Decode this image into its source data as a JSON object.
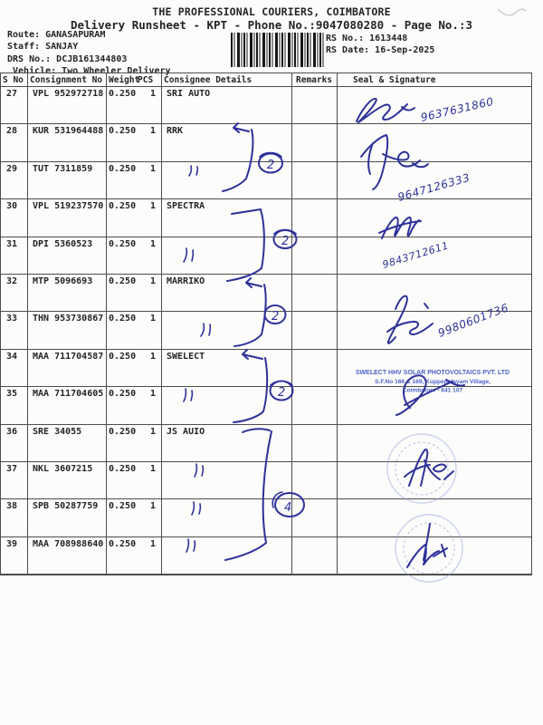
{
  "header": {
    "title": "THE PROFESSIONAL COURIERS, COIMBATORE",
    "subtitle": "Delivery Runsheet - KPT - Phone No.:9047080280 - Page No.:3",
    "route_label": "Route:",
    "route_value": "GANASAPURAM",
    "staff_label": "Staff:",
    "staff_value": "SANJAY",
    "drs_label": "DRS No.:",
    "drs_value": "DCJB161344803",
    "vehicle_label": "Vehicle:",
    "vehicle_value": "Two Wheeler Delivery",
    "rs_no_label": "RS No.:",
    "rs_no_value": "1613448",
    "rs_date_label": "RS Date:",
    "rs_date_value": "16-Sep-2025"
  },
  "table": {
    "headers": {
      "sno": "S No",
      "consignment": "Consignment No",
      "weight": "Weight",
      "pcs": "PCS",
      "consignee": "Consignee Details",
      "remarks": "Remarks",
      "seal": "Seal & Signature"
    },
    "rows": [
      {
        "sno": "27",
        "consignment": "VPL 952972718",
        "weight": "0.250",
        "pcs": "1",
        "consignee": "SRI AUTO",
        "remarks": ""
      },
      {
        "sno": "28",
        "consignment": "KUR 531964488",
        "weight": "0.250",
        "pcs": "1",
        "consignee": "RRK",
        "remarks": ""
      },
      {
        "sno": "29",
        "consignment": "TUT 7311859",
        "weight": "0.250",
        "pcs": "1",
        "consignee": "",
        "remarks": ""
      },
      {
        "sno": "30",
        "consignment": "VPL 519237570",
        "weight": "0.250",
        "pcs": "1",
        "consignee": "SPECTRA",
        "remarks": ""
      },
      {
        "sno": "31",
        "consignment": "DPI 5360523",
        "weight": "0.250",
        "pcs": "1",
        "consignee": "",
        "remarks": ""
      },
      {
        "sno": "32",
        "consignment": "MTP 5096693",
        "weight": "0.250",
        "pcs": "1",
        "consignee": "MARRIKO",
        "remarks": ""
      },
      {
        "sno": "33",
        "consignment": "THN 953730867",
        "weight": "0.250",
        "pcs": "1",
        "consignee": "",
        "remarks": ""
      },
      {
        "sno": "34",
        "consignment": "MAA 711704587",
        "weight": "0.250",
        "pcs": "1",
        "consignee": "SWELECT",
        "remarks": ""
      },
      {
        "sno": "35",
        "consignment": "MAA 711704605",
        "weight": "0.250",
        "pcs": "1",
        "consignee": "",
        "remarks": ""
      },
      {
        "sno": "36",
        "consignment": "SRE 34055",
        "weight": "0.250",
        "pcs": "1",
        "consignee": "JS AUIO",
        "remarks": ""
      },
      {
        "sno": "37",
        "consignment": "NKL 3607215",
        "weight": "0.250",
        "pcs": "1",
        "consignee": "",
        "remarks": ""
      },
      {
        "sno": "38",
        "consignment": "SPB 50287759",
        "weight": "0.250",
        "pcs": "1",
        "consignee": "",
        "remarks": ""
      },
      {
        "sno": "39",
        "consignment": "MAA 708988640",
        "weight": "0.250",
        "pcs": "1",
        "consignee": "",
        "remarks": ""
      }
    ]
  },
  "handwriting": {
    "ink_color": "#2e3199",
    "stamp_blue": "#3c55c8",
    "seal_blue": "#8ca0d8",
    "phones": {
      "p27": "9637631860",
      "p28": "9647126333",
      "p30": "9843712611",
      "p32": "9980601736"
    },
    "group_counts": {
      "g28_29": "2",
      "g30_31": "2",
      "g32_33": "2",
      "g34_35": "2",
      "g36_39": "4"
    },
    "stamp": {
      "line1": "SWELECT HHV SOLAR PHOTOVOLTAICS PVT. LTD",
      "line2": "S.F.No 166 & 169, Kuppepalayam Village,",
      "line3": "Coimbatore - 641 107"
    }
  }
}
